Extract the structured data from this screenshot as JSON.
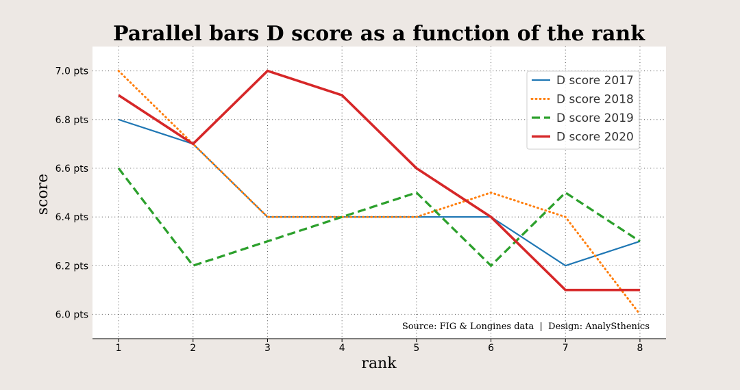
{
  "chart_data": {
    "type": "line",
    "title": "Parallel bars D score as a function of the rank",
    "xlabel": "rank",
    "ylabel": "score",
    "x": [
      1,
      2,
      3,
      4,
      5,
      6,
      7,
      8
    ],
    "x_tick_labels": [
      "1",
      "2",
      "3",
      "4",
      "5",
      "6",
      "7",
      "8"
    ],
    "xlim": [
      0.65,
      8.35
    ],
    "ylim": [
      5.9,
      7.1
    ],
    "y_ticks": [
      6.0,
      6.2,
      6.4,
      6.6,
      6.8,
      7.0
    ],
    "y_tick_labels": [
      "6.0 pts",
      "6.2 pts",
      "6.4 pts",
      "6.6 pts",
      "6.8 pts",
      "7.0 pts"
    ],
    "grid": true,
    "legend_position": "top-right",
    "series": [
      {
        "name": "D score 2017",
        "color": "#1f77b4",
        "style": "solid",
        "values": [
          6.8,
          6.7,
          6.4,
          6.4,
          6.4,
          6.4,
          6.2,
          6.3
        ]
      },
      {
        "name": "D score 2018",
        "color": "#ff7f0e",
        "style": "dotted",
        "values": [
          7.0,
          6.7,
          6.4,
          6.4,
          6.4,
          6.5,
          6.4,
          6.0
        ]
      },
      {
        "name": "D score 2019",
        "color": "#2ca02c",
        "style": "dashed",
        "values": [
          6.6,
          6.2,
          6.3,
          6.4,
          6.5,
          6.2,
          6.5,
          6.3
        ]
      },
      {
        "name": "D score 2020",
        "color": "#d62728",
        "style": "solid-thick",
        "values": [
          6.9,
          6.7,
          7.0,
          6.9,
          6.6,
          6.4,
          6.1,
          6.1
        ]
      }
    ],
    "annotation": "Source: FIG & Longines data  |  Design: AnalySthenics"
  }
}
